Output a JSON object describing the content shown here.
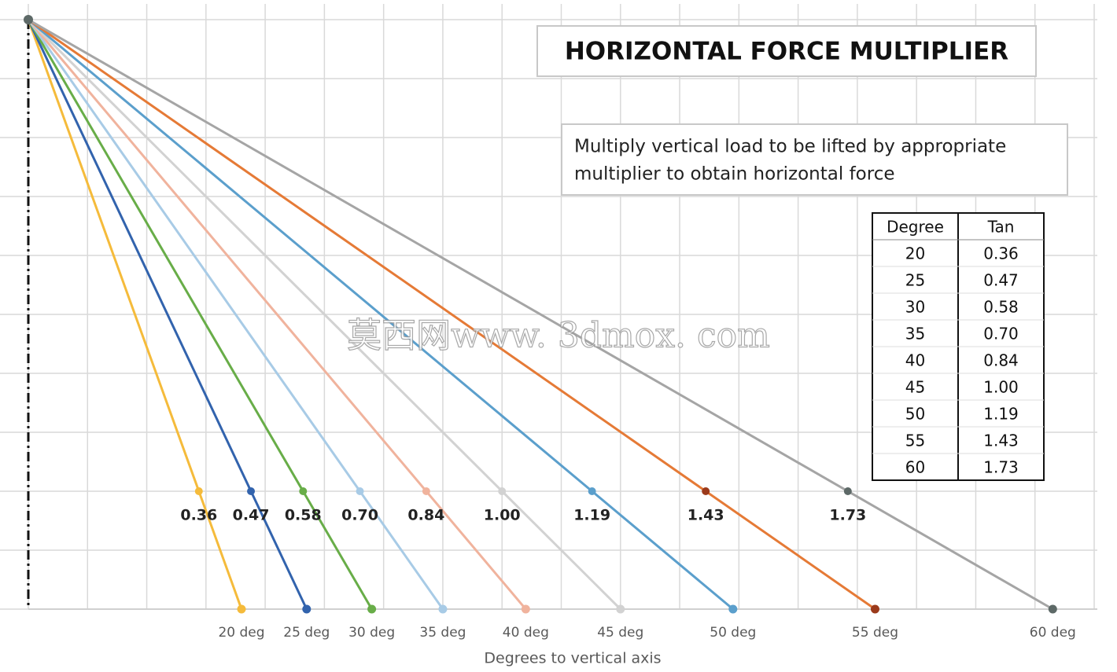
{
  "chart_data": {
    "type": "fan",
    "title": "HORIZONTAL FORCE MULTIPLIER",
    "note": [
      "Multiply vertical load to be lifted by appropriate",
      "multiplier to obtain horizontal force"
    ],
    "x_label": "Degrees to vertical axis",
    "categories": [
      "20 deg",
      "25 deg",
      "30 deg",
      "35 deg",
      "40 deg",
      "45 deg",
      "50 deg",
      "55 deg",
      "60 deg"
    ],
    "values": [
      0.36,
      0.47,
      0.58,
      0.7,
      0.84,
      1.0,
      1.19,
      1.43,
      1.73
    ],
    "value_labels": [
      "0.36",
      "0.47",
      "0.58",
      "0.70",
      "0.84",
      "1.00",
      "1.19",
      "1.43",
      "1.73"
    ],
    "colors": [
      "#f5bb3b",
      "#3263ad",
      "#68ad48",
      "#a8cbe6",
      "#f0b39d",
      "#d2d2d2",
      "#5b9fcc",
      "#e57a36",
      "#a5a5a5"
    ],
    "marker_colors": [
      "#f5bb3b",
      "#3263ad",
      "#68ad48",
      "#a8cbe6",
      "#f0b39d",
      "#d2d2d2",
      "#5b9fcc",
      "#9b3a1b",
      "#5d6967"
    ],
    "xlim": [
      0,
      1.8
    ],
    "ylim": [
      0,
      1
    ],
    "table": {
      "header": [
        "Degree",
        "Tan"
      ],
      "rows": [
        [
          "20",
          "0.36"
        ],
        [
          "25",
          "0.47"
        ],
        [
          "30",
          "0.58"
        ],
        [
          "35",
          "0.70"
        ],
        [
          "40",
          "0.84"
        ],
        [
          "45",
          "1.00"
        ],
        [
          "50",
          "1.19"
        ],
        [
          "55",
          "1.43"
        ],
        [
          "60",
          "1.73"
        ]
      ]
    },
    "watermark": "莫西网www. 3dmox. com"
  }
}
